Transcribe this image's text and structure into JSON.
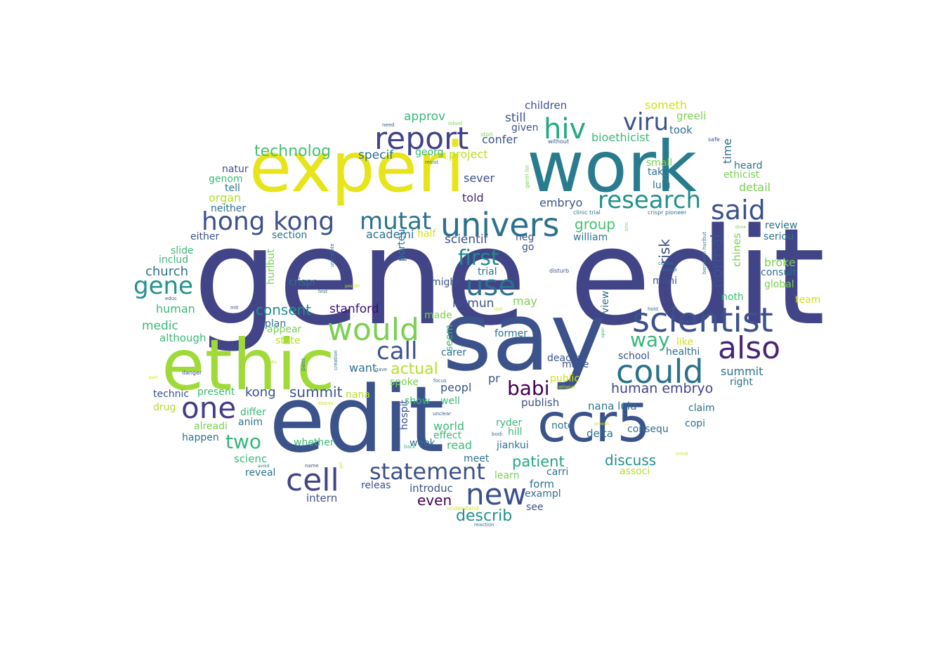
{
  "words": [
    {
      "text": "gene edit",
      "color": "#414487"
    },
    {
      "text": "say",
      "color": "#3b528b"
    },
    {
      "text": "edit",
      "color": "#3b528b"
    },
    {
      "text": "experi",
      "color": "#e7e419"
    },
    {
      "text": "work",
      "color": "#287c8e"
    },
    {
      "text": "ethic",
      "color": "#a0da39"
    },
    {
      "text": "ccr5",
      "color": "#3b528b"
    },
    {
      "text": "scientist",
      "color": "#3b528b"
    },
    {
      "text": "could",
      "color": "#2c728e"
    },
    {
      "text": "would",
      "color": "#7ad151"
    },
    {
      "text": "also",
      "color": "#482576"
    },
    {
      "text": "report",
      "color": "#414487"
    },
    {
      "text": "univers",
      "color": "#2c728e"
    },
    {
      "text": "hong kong",
      "color": "#3b528b"
    },
    {
      "text": "use",
      "color": "#2c728e"
    },
    {
      "text": "new",
      "color": "#3b528b"
    },
    {
      "text": "cell",
      "color": "#414487"
    },
    {
      "text": "one",
      "color": "#433e85"
    },
    {
      "text": "hiv",
      "color": "#22a884"
    },
    {
      "text": "research",
      "color": "#21918c"
    },
    {
      "text": "said",
      "color": "#3b528b"
    },
    {
      "text": "mutat",
      "color": "#2c728e"
    },
    {
      "text": "gene",
      "color": "#21918c"
    },
    {
      "text": "statement",
      "color": "#3b528b"
    },
    {
      "text": "call",
      "color": "#3b528b"
    },
    {
      "text": "viru",
      "color": "#3b528b"
    },
    {
      "text": "two",
      "color": "#35b779"
    },
    {
      "text": "first",
      "color": "#228c8d"
    },
    {
      "text": "babi",
      "color": "#440154"
    },
    {
      "text": "way",
      "color": "#35b779"
    },
    {
      "text": "technolog",
      "color": "#44bf70"
    },
    {
      "text": "actual",
      "color": "#b5de2b"
    },
    {
      "text": "summit",
      "color": "#3b528b"
    },
    {
      "text": "consent",
      "color": "#21918c"
    },
    {
      "text": "human embryo",
      "color": "#414487"
    },
    {
      "text": "discuss",
      "color": "#21918c"
    },
    {
      "text": "describ",
      "color": "#21918c"
    },
    {
      "text": "patient",
      "color": "#22a884"
    },
    {
      "text": "even",
      "color": "#440154"
    },
    {
      "text": "kong",
      "color": "#3b528b"
    },
    {
      "text": "church",
      "color": "#2c728e"
    },
    {
      "text": "stanford",
      "color": "#3b0f70"
    },
    {
      "text": "risk",
      "color": "#3e4989"
    },
    {
      "text": "normal",
      "color": "#3b528b"
    },
    {
      "text": "group",
      "color": "#44bf70"
    },
    {
      "text": "academi",
      "color": "#2c728e"
    },
    {
      "text": "scientif",
      "color": "#3b528b"
    },
    {
      "text": "approv",
      "color": "#3aba76"
    },
    {
      "text": "specif",
      "color": "#2c728e"
    },
    {
      "text": "project",
      "color": "#bddf26"
    },
    {
      "text": "confer",
      "color": "#3b528b"
    },
    {
      "text": "bioethicist",
      "color": "#3aba76"
    },
    {
      "text": "children",
      "color": "#3b528b"
    },
    {
      "text": "still",
      "color": "#3b528b"
    },
    {
      "text": "given",
      "color": "#3b528b"
    },
    {
      "text": "someth",
      "color": "#d2e21b"
    },
    {
      "text": "took",
      "color": "#2c728e"
    },
    {
      "text": "greeli",
      "color": "#7ad151"
    },
    {
      "text": "time",
      "color": "#2c728e"
    },
    {
      "text": "heard",
      "color": "#2c728e"
    },
    {
      "text": "ethicist",
      "color": "#7ad151"
    },
    {
      "text": "detail",
      "color": "#7ad151"
    },
    {
      "text": "small",
      "color": "#7ad151"
    },
    {
      "text": "take",
      "color": "#2c728e"
    },
    {
      "text": "lulu",
      "color": "#2c728e"
    },
    {
      "text": "georg",
      "color": "#3aba76"
    },
    {
      "text": "sever",
      "color": "#3b528b"
    },
    {
      "text": "told",
      "color": "#482576"
    },
    {
      "text": "embryo",
      "color": "#3b528b"
    },
    {
      "text": "natur",
      "color": "#3b528b"
    },
    {
      "text": "genom",
      "color": "#3aba76"
    },
    {
      "text": "tell",
      "color": "#2c728e"
    },
    {
      "text": "organ",
      "color": "#b5de2b"
    },
    {
      "text": "neither",
      "color": "#2c728e"
    },
    {
      "text": "either",
      "color": "#3b528b"
    },
    {
      "text": "section",
      "color": "#2c728e"
    },
    {
      "text": "slide",
      "color": "#3aba76"
    },
    {
      "text": "includ",
      "color": "#3aba76"
    },
    {
      "text": "hurlbut",
      "color": "#7ad151"
    },
    {
      "text": "crispr",
      "color": "#2c728e"
    },
    {
      "text": "porteu",
      "color": "#2c728e"
    },
    {
      "text": "half",
      "color": "#d2e21b"
    },
    {
      "text": "neg",
      "color": "#3b528b"
    },
    {
      "text": "go",
      "color": "#3b528b"
    },
    {
      "text": "william",
      "color": "#2c728e"
    },
    {
      "text": "trial",
      "color": "#2c728e"
    },
    {
      "text": "might",
      "color": "#3b528b"
    },
    {
      "text": "immun",
      "color": "#3b528b"
    },
    {
      "text": "may",
      "color": "#7ad151"
    },
    {
      "text": "made",
      "color": "#7ad151"
    },
    {
      "text": "seem",
      "color": "#3aba76"
    },
    {
      "text": "former",
      "color": "#2c728e"
    },
    {
      "text": "carer",
      "color": "#2c728e"
    },
    {
      "text": "want",
      "color": "#2c728e"
    },
    {
      "text": "human",
      "color": "#3aba76"
    },
    {
      "text": "medic",
      "color": "#3aba76"
    },
    {
      "text": "although",
      "color": "#3aba76"
    },
    {
      "text": "plan",
      "color": "#2c728e"
    },
    {
      "text": "appear",
      "color": "#7ad151"
    },
    {
      "text": "state",
      "color": "#b5de2b"
    },
    {
      "text": "mani",
      "color": "#3b528b"
    },
    {
      "text": "view",
      "color": "#2c728e"
    },
    {
      "text": "like",
      "color": "#d2e21b"
    },
    {
      "text": "healthi",
      "color": "#2c728e"
    },
    {
      "text": "school",
      "color": "#3b528b"
    },
    {
      "text": "make",
      "color": "#3b528b"
    },
    {
      "text": "noth",
      "color": "#3aba76"
    },
    {
      "text": "team",
      "color": "#d2e21b"
    },
    {
      "text": "summit",
      "color": "#2c728e"
    },
    {
      "text": "right",
      "color": "#2c728e"
    },
    {
      "text": "claim",
      "color": "#2c728e"
    },
    {
      "text": "copi",
      "color": "#2c728e"
    },
    {
      "text": "review",
      "color": "#2c728e"
    },
    {
      "text": "seriou",
      "color": "#2c728e"
    },
    {
      "text": "broke",
      "color": "#7ad151"
    },
    {
      "text": "consult",
      "color": "#2c728e"
    },
    {
      "text": "global",
      "color": "#7ad151"
    },
    {
      "text": "chines",
      "color": "#7ad151"
    },
    {
      "text": "technic",
      "color": "#3b528b"
    },
    {
      "text": "present",
      "color": "#3aba76"
    },
    {
      "text": "drug",
      "color": "#b5de2b"
    },
    {
      "text": "differ",
      "color": "#3aba76"
    },
    {
      "text": "anim",
      "color": "#2c728e"
    },
    {
      "text": "alreadi",
      "color": "#7ad151"
    },
    {
      "text": "happen",
      "color": "#2c728e"
    },
    {
      "text": "whether",
      "color": "#3aba76"
    },
    {
      "text": "scienc",
      "color": "#3aba76"
    },
    {
      "text": "reveal",
      "color": "#2c728e"
    },
    {
      "text": "intern",
      "color": "#3b528b"
    },
    {
      "text": "introduc",
      "color": "#3b528b"
    },
    {
      "text": "releas",
      "color": "#3b528b"
    },
    {
      "text": "nana",
      "color": "#b5de2b"
    },
    {
      "text": "spoke",
      "color": "#7ad151"
    },
    {
      "text": "hospit",
      "color": "#3b528b"
    },
    {
      "text": "show",
      "color": "#3aba76"
    },
    {
      "text": "well",
      "color": "#3aba76"
    },
    {
      "text": "peopl",
      "color": "#3b528b"
    },
    {
      "text": "pr",
      "color": "#3b528b"
    },
    {
      "text": "publish",
      "color": "#3b528b"
    },
    {
      "text": "world",
      "color": "#3aba76"
    },
    {
      "text": "effect",
      "color": "#3aba76"
    },
    {
      "text": "read",
      "color": "#3aba76"
    },
    {
      "text": "ryder",
      "color": "#3aba76"
    },
    {
      "text": "hill",
      "color": "#3aba76"
    },
    {
      "text": "jiankui",
      "color": "#2c728e"
    },
    {
      "text": "meet",
      "color": "#2c728e"
    },
    {
      "text": "learn",
      "color": "#7ad151"
    },
    {
      "text": "week",
      "color": "#2c728e"
    },
    {
      "text": "form",
      "color": "#2c728e"
    },
    {
      "text": "exampl",
      "color": "#2c728e"
    },
    {
      "text": "see",
      "color": "#3b528b"
    },
    {
      "text": "carri",
      "color": "#2c728e"
    },
    {
      "text": "note",
      "color": "#2c728e"
    },
    {
      "text": "delta",
      "color": "#2c728e"
    },
    {
      "text": "nana lulu",
      "color": "#2c728e"
    },
    {
      "text": "consequ",
      "color": "#2c728e"
    },
    {
      "text": "associ",
      "color": "#b5de2b"
    },
    {
      "text": "deactiv",
      "color": "#3b528b"
    },
    {
      "text": "public",
      "color": "#d2e21b"
    },
    {
      "text": "infant",
      "color": "#7ad151"
    },
    {
      "text": "need",
      "color": "#3b528b"
    },
    {
      "text": "stori",
      "color": "#7ad151"
    },
    {
      "text": "without",
      "color": "#3b528b"
    },
    {
      "text": "safe",
      "color": "#3b528b"
    },
    {
      "text": "resist",
      "color": "#2c728e"
    },
    {
      "text": "germ lin",
      "color": "#7ad151"
    },
    {
      "text": "clinic trial",
      "color": "#2c728e"
    },
    {
      "text": "crispr pioneer",
      "color": "#2c728e"
    },
    {
      "text": "sinc",
      "color": "#7ad151"
    },
    {
      "text": "done",
      "color": "#7ad151"
    },
    {
      "text": "unit state",
      "color": "#2c728e"
    },
    {
      "text": "possibl",
      "color": "#d2e21b"
    },
    {
      "text": "test",
      "color": "#2c728e"
    },
    {
      "text": "educ",
      "color": "#3b528b"
    },
    {
      "text": "mit",
      "color": "#3b528b"
    },
    {
      "text": "last",
      "color": "#d2e21b"
    },
    {
      "text": "hold",
      "color": "#2c728e"
    },
    {
      "text": "disturb",
      "color": "#3b528b"
    },
    {
      "text": "center",
      "color": "#2c728e"
    },
    {
      "text": "enough",
      "color": "#2c728e"
    },
    {
      "text": "benjamin hurlbut",
      "color": "#2c728e"
    },
    {
      "text": "open",
      "color": "#3aba76"
    },
    {
      "text": "die",
      "color": "#d2e21b"
    },
    {
      "text": "creation",
      "color": "#2c728e"
    },
    {
      "text": "pass",
      "color": "#2c728e"
    },
    {
      "text": "gave",
      "color": "#2c728e"
    },
    {
      "text": "focus",
      "color": "#2c728e"
    },
    {
      "text": "rational",
      "color": "#d2e21b"
    },
    {
      "text": "part",
      "color": "#d2e21b"
    },
    {
      "text": "danger",
      "color": "#3b528b"
    },
    {
      "text": "diseas",
      "color": "#d2e21b"
    },
    {
      "text": "unclear",
      "color": "#3b528b"
    },
    {
      "text": "back",
      "color": "#3aba76"
    },
    {
      "text": "bodi",
      "color": "#2c728e"
    },
    {
      "text": "growth",
      "color": "#d2e21b"
    },
    {
      "text": "creat",
      "color": "#d2e21b"
    },
    {
      "text": "avoid",
      "color": "#2c728e"
    },
    {
      "text": "name",
      "color": "#3b528b"
    },
    {
      "text": "girl",
      "color": "#d2e21b"
    },
    {
      "text": "understand",
      "color": "#d2e21b"
    },
    {
      "text": "reaction",
      "color": "#2c728e"
    }
  ]
}
